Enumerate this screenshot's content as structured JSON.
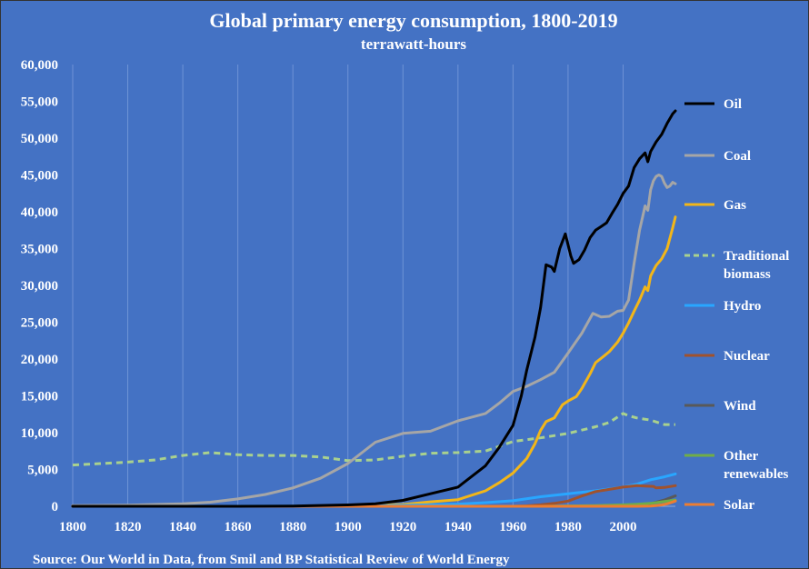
{
  "chart_data": {
    "type": "line",
    "title": "Global primary energy consumption, 1800-2019",
    "subtitle": "terrawatt-hours",
    "source": "Source: Our World in Data, from Smil and BP Statistical Review of World Energy",
    "xlim": [
      1800,
      2019
    ],
    "ylim": [
      0,
      60000
    ],
    "x_ticks": [
      1800,
      1820,
      1840,
      1860,
      1880,
      1900,
      1920,
      1940,
      1960,
      1980,
      2000
    ],
    "y_ticks": [
      0,
      5000,
      10000,
      15000,
      20000,
      25000,
      30000,
      35000,
      40000,
      45000,
      50000,
      55000,
      60000
    ],
    "y_tick_labels": [
      "0",
      "5,000",
      "10,000",
      "15,000",
      "20,000",
      "25,000",
      "30,000",
      "35,000",
      "40,000",
      "45,000",
      "50,000",
      "55,000",
      "60,000"
    ],
    "grid": "vertical",
    "legend_position": "right",
    "series": [
      {
        "name": "Oil",
        "color": "#000000",
        "dash": false,
        "points": [
          [
            1800,
            0
          ],
          [
            1860,
            0
          ],
          [
            1880,
            30
          ],
          [
            1900,
            180
          ],
          [
            1910,
            350
          ],
          [
            1920,
            800
          ],
          [
            1930,
            1700
          ],
          [
            1940,
            2600
          ],
          [
            1950,
            5500
          ],
          [
            1955,
            8000
          ],
          [
            1960,
            11000
          ],
          [
            1963,
            15000
          ],
          [
            1965,
            18500
          ],
          [
            1968,
            23000
          ],
          [
            1970,
            27000
          ],
          [
            1972,
            32800
          ],
          [
            1974,
            32500
          ],
          [
            1975,
            31900
          ],
          [
            1977,
            35000
          ],
          [
            1979,
            37000
          ],
          [
            1981,
            34000
          ],
          [
            1982,
            33000
          ],
          [
            1984,
            33500
          ],
          [
            1986,
            34800
          ],
          [
            1988,
            36500
          ],
          [
            1990,
            37500
          ],
          [
            1992,
            38000
          ],
          [
            1994,
            38500
          ],
          [
            1996,
            39800
          ],
          [
            1998,
            41000
          ],
          [
            2000,
            42500
          ],
          [
            2002,
            43500
          ],
          [
            2004,
            46000
          ],
          [
            2006,
            47200
          ],
          [
            2008,
            48000
          ],
          [
            2009,
            46800
          ],
          [
            2010,
            48200
          ],
          [
            2012,
            49500
          ],
          [
            2014,
            50500
          ],
          [
            2016,
            52000
          ],
          [
            2018,
            53300
          ],
          [
            2019,
            53700
          ]
        ]
      },
      {
        "name": "Coal",
        "color": "#a6a6a6",
        "dash": false,
        "points": [
          [
            1800,
            100
          ],
          [
            1820,
            150
          ],
          [
            1840,
            350
          ],
          [
            1850,
            550
          ],
          [
            1860,
            1000
          ],
          [
            1870,
            1600
          ],
          [
            1880,
            2500
          ],
          [
            1890,
            3800
          ],
          [
            1900,
            5800
          ],
          [
            1910,
            8700
          ],
          [
            1920,
            9900
          ],
          [
            1930,
            10200
          ],
          [
            1940,
            11600
          ],
          [
            1950,
            12600
          ],
          [
            1955,
            14000
          ],
          [
            1960,
            15600
          ],
          [
            1965,
            16300
          ],
          [
            1970,
            17200
          ],
          [
            1975,
            18200
          ],
          [
            1980,
            20800
          ],
          [
            1985,
            23500
          ],
          [
            1989,
            26200
          ],
          [
            1992,
            25700
          ],
          [
            1995,
            25800
          ],
          [
            1998,
            26500
          ],
          [
            2000,
            26600
          ],
          [
            2002,
            28000
          ],
          [
            2004,
            33000
          ],
          [
            2006,
            37500
          ],
          [
            2008,
            40800
          ],
          [
            2009,
            40200
          ],
          [
            2010,
            43000
          ],
          [
            2011,
            44200
          ],
          [
            2012,
            44800
          ],
          [
            2013,
            45000
          ],
          [
            2014,
            44800
          ],
          [
            2015,
            43900
          ],
          [
            2016,
            43300
          ],
          [
            2017,
            43500
          ],
          [
            2018,
            44000
          ],
          [
            2019,
            43800
          ]
        ]
      },
      {
        "name": "Gas",
        "color": "#f2b619",
        "dash": false,
        "points": [
          [
            1800,
            0
          ],
          [
            1880,
            0
          ],
          [
            1900,
            70
          ],
          [
            1920,
            250
          ],
          [
            1930,
            600
          ],
          [
            1940,
            900
          ],
          [
            1950,
            2100
          ],
          [
            1955,
            3200
          ],
          [
            1960,
            4500
          ],
          [
            1965,
            6500
          ],
          [
            1968,
            8500
          ],
          [
            1970,
            10300
          ],
          [
            1972,
            11500
          ],
          [
            1975,
            12000
          ],
          [
            1978,
            13800
          ],
          [
            1980,
            14300
          ],
          [
            1983,
            14900
          ],
          [
            1985,
            16000
          ],
          [
            1988,
            18000
          ],
          [
            1990,
            19500
          ],
          [
            1993,
            20400
          ],
          [
            1995,
            21000
          ],
          [
            1998,
            22300
          ],
          [
            2000,
            23500
          ],
          [
            2002,
            24900
          ],
          [
            2004,
            26500
          ],
          [
            2006,
            28000
          ],
          [
            2008,
            29800
          ],
          [
            2009,
            29300
          ],
          [
            2010,
            31300
          ],
          [
            2012,
            32700
          ],
          [
            2014,
            33600
          ],
          [
            2016,
            35000
          ],
          [
            2018,
            37800
          ],
          [
            2019,
            39300
          ]
        ]
      },
      {
        "name": "Traditional biomass",
        "color": "#a9d18e",
        "dash": true,
        "points": [
          [
            1800,
            5600
          ],
          [
            1810,
            5800
          ],
          [
            1820,
            6000
          ],
          [
            1830,
            6300
          ],
          [
            1840,
            6900
          ],
          [
            1850,
            7300
          ],
          [
            1860,
            7000
          ],
          [
            1870,
            6900
          ],
          [
            1880,
            6900
          ],
          [
            1890,
            6700
          ],
          [
            1900,
            6200
          ],
          [
            1910,
            6300
          ],
          [
            1920,
            6800
          ],
          [
            1930,
            7200
          ],
          [
            1940,
            7300
          ],
          [
            1950,
            7500
          ],
          [
            1960,
            8800
          ],
          [
            1970,
            9300
          ],
          [
            1980,
            9900
          ],
          [
            1990,
            10800
          ],
          [
            1995,
            11400
          ],
          [
            2000,
            12600
          ],
          [
            2002,
            12300
          ],
          [
            2005,
            12000
          ],
          [
            2010,
            11700
          ],
          [
            2015,
            11100
          ],
          [
            2019,
            11100
          ]
        ]
      },
      {
        "name": "Hydro",
        "color": "#29a6ff",
        "dash": false,
        "points": [
          [
            1800,
            0
          ],
          [
            1900,
            30
          ],
          [
            1920,
            120
          ],
          [
            1940,
            300
          ],
          [
            1950,
            500
          ],
          [
            1960,
            750
          ],
          [
            1970,
            1300
          ],
          [
            1980,
            1700
          ],
          [
            1990,
            2100
          ],
          [
            2000,
            2600
          ],
          [
            2005,
            3000
          ],
          [
            2010,
            3600
          ],
          [
            2015,
            4000
          ],
          [
            2019,
            4400
          ]
        ]
      },
      {
        "name": "Nuclear",
        "color": "#a0522d",
        "dash": false,
        "points": [
          [
            1800,
            0
          ],
          [
            1960,
            0
          ],
          [
            1965,
            60
          ],
          [
            1970,
            200
          ],
          [
            1975,
            400
          ],
          [
            1980,
            700
          ],
          [
            1985,
            1400
          ],
          [
            1990,
            2000
          ],
          [
            1995,
            2300
          ],
          [
            2000,
            2600
          ],
          [
            2005,
            2800
          ],
          [
            2008,
            2750
          ],
          [
            2011,
            2700
          ],
          [
            2012,
            2500
          ],
          [
            2015,
            2550
          ],
          [
            2019,
            2800
          ]
        ]
      },
      {
        "name": "Wind",
        "color": "#595959",
        "dash": false,
        "points": [
          [
            1800,
            0
          ],
          [
            1990,
            0
          ],
          [
            2000,
            30
          ],
          [
            2005,
            100
          ],
          [
            2010,
            350
          ],
          [
            2015,
            850
          ],
          [
            2019,
            1420
          ]
        ]
      },
      {
        "name": "Other renewables",
        "color": "#70ad47",
        "dash": false,
        "points": [
          [
            1800,
            0
          ],
          [
            1970,
            0
          ],
          [
            1980,
            50
          ],
          [
            1990,
            100
          ],
          [
            2000,
            200
          ],
          [
            2005,
            280
          ],
          [
            2010,
            400
          ],
          [
            2015,
            650
          ],
          [
            2019,
            850
          ]
        ]
      },
      {
        "name": "Solar",
        "color": "#ed7d31",
        "dash": false,
        "points": [
          [
            1800,
            0
          ],
          [
            2005,
            0
          ],
          [
            2008,
            10
          ],
          [
            2010,
            30
          ],
          [
            2012,
            100
          ],
          [
            2014,
            190
          ],
          [
            2016,
            330
          ],
          [
            2018,
            580
          ],
          [
            2019,
            720
          ]
        ]
      }
    ]
  }
}
